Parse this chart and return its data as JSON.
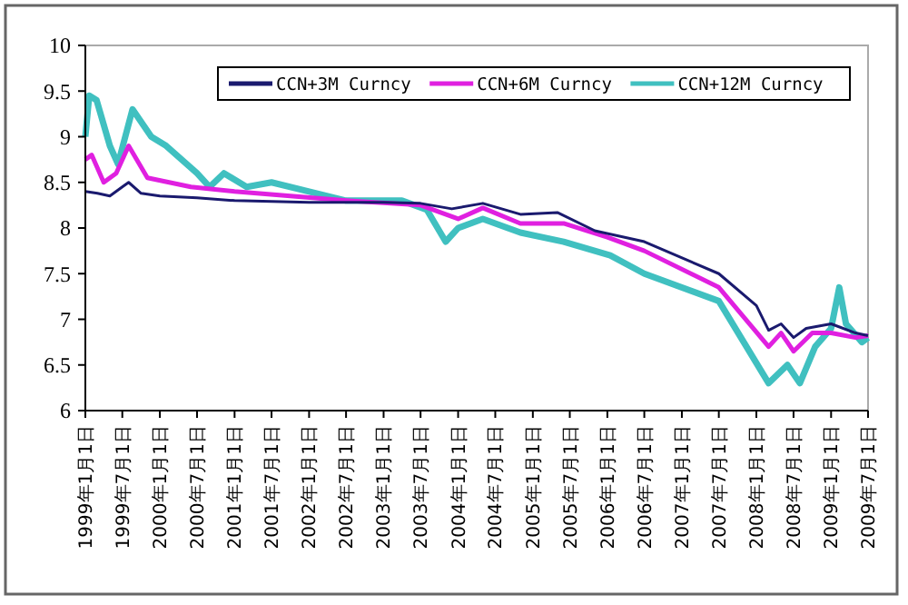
{
  "chart_data": {
    "type": "line",
    "legend": "top right",
    "line_style": "solid",
    "xlim": [
      "1999-01-01",
      "2009-07-01"
    ],
    "xticks": [
      {
        "value": "1999-01-01",
        "label": "1999年1月1日"
      },
      {
        "value": "1999-07-01",
        "label": "1999年7月1日"
      },
      {
        "value": "2000-01-01",
        "label": "2000年1月1日"
      },
      {
        "value": "2000-07-01",
        "label": "2000年7月1日"
      },
      {
        "value": "2001-01-01",
        "label": "2001年1月1日"
      },
      {
        "value": "2001-07-01",
        "label": "2001年7月1日"
      },
      {
        "value": "2002-01-01",
        "label": "2002年1月1日"
      },
      {
        "value": "2002-07-01",
        "label": "2002年7月1日"
      },
      {
        "value": "2003-01-01",
        "label": "2003年1月1日"
      },
      {
        "value": "2003-07-01",
        "label": "2003年7月1日"
      },
      {
        "value": "2004-01-01",
        "label": "2004年1月1日"
      },
      {
        "value": "2004-07-01",
        "label": "2004年7月1日"
      },
      {
        "value": "2005-01-01",
        "label": "2005年1月1日"
      },
      {
        "value": "2005-07-01",
        "label": "2005年7月1日"
      },
      {
        "value": "2006-01-01",
        "label": "2006年1月1日"
      },
      {
        "value": "2006-07-01",
        "label": "2006年7月1日"
      },
      {
        "value": "2007-01-01",
        "label": "2007年1月1日"
      },
      {
        "value": "2007-07-01",
        "label": "2007年7月1日"
      },
      {
        "value": "2008-01-01",
        "label": "2008年1月1日"
      },
      {
        "value": "2008-07-01",
        "label": "2008年7月1日"
      },
      {
        "value": "2009-01-01",
        "label": "2009年1月1日"
      },
      {
        "value": "2009-07-01",
        "label": "2009年7月1日"
      }
    ],
    "ylim": [
      6,
      10
    ],
    "yticks": [
      6,
      6.5,
      7,
      7.5,
      8,
      8.5,
      9,
      9.5,
      10
    ],
    "series": [
      {
        "name": "CCN+3M Curncy",
        "color": "#1a1a6e",
        "x": [
          "1999-01-01",
          "1999-03-01",
          "1999-05-01",
          "1999-07-01",
          "1999-08-01",
          "1999-10-01",
          "2000-01-01",
          "2000-07-01",
          "2001-01-01",
          "2002-01-01",
          "2003-01-01",
          "2003-07-01",
          "2003-12-01",
          "2004-05-01",
          "2004-11-01",
          "2005-05-01",
          "2005-11-01",
          "2006-07-01",
          "2007-07-01",
          "2008-01-01",
          "2008-03-01",
          "2008-05-01",
          "2008-07-01",
          "2008-09-01",
          "2009-01-01",
          "2009-05-01",
          "2009-07-01"
        ],
        "values": [
          8.4,
          8.38,
          8.35,
          8.45,
          8.5,
          8.38,
          8.35,
          8.33,
          8.3,
          8.28,
          8.28,
          8.27,
          8.21,
          8.27,
          8.15,
          8.17,
          7.97,
          7.85,
          7.5,
          7.15,
          6.88,
          6.95,
          6.8,
          6.9,
          6.95,
          6.85,
          6.82
        ]
      },
      {
        "name": "CCN+6M Curncy",
        "color": "#e020e0",
        "x": [
          "1999-01-01",
          "1999-02-01",
          "1999-04-01",
          "1999-06-01",
          "1999-08-01",
          "1999-11-01",
          "2000-06-01",
          "2001-01-01",
          "2001-10-01",
          "2002-07-01",
          "2003-07-01",
          "2004-01-01",
          "2004-05-01",
          "2004-11-01",
          "2005-06-01",
          "2006-01-01",
          "2006-07-01",
          "2007-07-01",
          "2008-03-01",
          "2008-05-01",
          "2008-07-01",
          "2008-10-01",
          "2009-01-01",
          "2009-05-01",
          "2009-07-01"
        ],
        "values": [
          8.75,
          8.8,
          8.5,
          8.6,
          8.9,
          8.55,
          8.45,
          8.4,
          8.35,
          8.3,
          8.25,
          8.1,
          8.22,
          8.05,
          8.05,
          7.9,
          7.75,
          7.35,
          6.7,
          6.85,
          6.65,
          6.85,
          6.85,
          6.8,
          6.82
        ]
      },
      {
        "name": "CCN+12M Curncy",
        "color": "#40c0c0",
        "x": [
          "1999-01-01",
          "1999-01-20",
          "1999-02-25",
          "1999-05-01",
          "1999-06-10",
          "1999-08-20",
          "1999-11-20",
          "2000-02-01",
          "2000-07-01",
          "2000-09-01",
          "2000-11-10",
          "2001-03-01",
          "2001-07-01",
          "2002-01-01",
          "2002-07-01",
          "2003-04-01",
          "2003-08-01",
          "2003-11-01",
          "2004-01-01",
          "2004-05-01",
          "2004-11-01",
          "2005-06-01",
          "2006-01-15",
          "2006-07-01",
          "2007-07-01",
          "2008-03-01",
          "2008-06-01",
          "2008-08-01",
          "2008-10-15",
          "2009-01-01",
          "2009-02-10",
          "2009-03-15",
          "2009-06-01",
          "2009-07-01"
        ],
        "values": [
          9.0,
          9.45,
          9.4,
          8.9,
          8.7,
          9.3,
          9.0,
          8.9,
          8.6,
          8.45,
          8.6,
          8.45,
          8.5,
          8.4,
          8.3,
          8.3,
          8.2,
          7.85,
          8.0,
          8.1,
          7.95,
          7.85,
          7.7,
          7.5,
          7.2,
          6.3,
          6.5,
          6.3,
          6.7,
          6.9,
          7.35,
          6.95,
          6.75,
          6.8
        ]
      }
    ]
  }
}
